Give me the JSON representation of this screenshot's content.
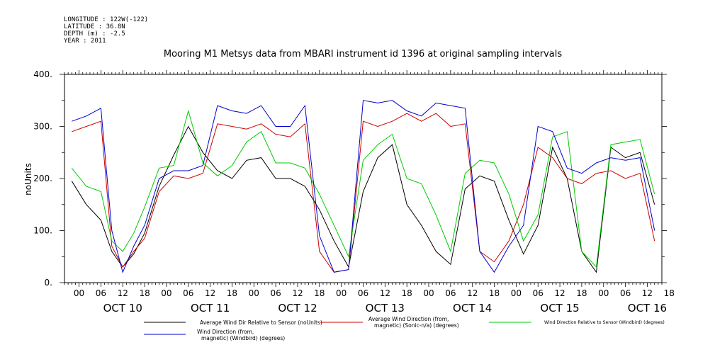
{
  "metadata": {
    "longitude": "LONGITUDE : 122W(-122)",
    "latitude": "LATITUDE : 36.8N",
    "depth": "DEPTH (m) : -2.5",
    "year": "YEAR : 2011"
  },
  "chart_data": {
    "type": "line",
    "title": "Mooring M1 Metsys data from MBARI instrument id 1396 at original sampling intervals",
    "ylabel": "noUnits",
    "xlabel": "",
    "ylim": [
      0,
      400
    ],
    "y_ticks": [
      0,
      100,
      200,
      300,
      400
    ],
    "x_hours_range": [
      -4,
      160
    ],
    "x_tick_labels": [
      "00",
      "06",
      "12",
      "18",
      "00",
      "06",
      "12",
      "18",
      "00",
      "06",
      "12",
      "18",
      "00",
      "06",
      "12",
      "18",
      "00",
      "06",
      "12",
      "18",
      "00",
      "06",
      "12",
      "18",
      "00",
      "06",
      "12",
      "18"
    ],
    "day_labels": [
      "OCT 10",
      "OCT 11",
      "OCT 12",
      "OCT 13",
      "OCT 14",
      "OCT 15",
      "OCT 16"
    ],
    "x_unit_note": "hours from 2011-10-10 00:00",
    "grid": false,
    "legend_position": "bottom",
    "series": [
      {
        "name": "Average Wind Dir Relative to Sensor (noUnits)",
        "color": "#000000",
        "x": [
          -2,
          2,
          6,
          9,
          12,
          15,
          18,
          22,
          26,
          30,
          34,
          38,
          42,
          46,
          50,
          54,
          58,
          62,
          66,
          70,
          74,
          78,
          82,
          86,
          90,
          94,
          98,
          102,
          106,
          110,
          114,
          118,
          122,
          126,
          130,
          134,
          138,
          142,
          146,
          150,
          154,
          158
        ],
        "y": [
          195,
          150,
          120,
          60,
          30,
          55,
          95,
          185,
          245,
          300,
          250,
          215,
          200,
          235,
          240,
          200,
          200,
          185,
          140,
          80,
          30,
          175,
          240,
          265,
          150,
          110,
          60,
          35,
          180,
          205,
          195,
          120,
          55,
          110,
          260,
          200,
          60,
          20,
          260,
          240,
          250,
          150
        ]
      },
      {
        "name": "Average Wind Direction (from, magnetic) (Sonic-n/a) (degrees)",
        "color": "#cc0000",
        "x": [
          -2,
          2,
          6,
          9,
          12,
          15,
          18,
          22,
          26,
          30,
          34,
          38,
          42,
          46,
          50,
          54,
          58,
          62,
          66,
          70,
          74,
          78,
          82,
          86,
          90,
          94,
          98,
          102,
          106,
          110,
          114,
          118,
          122,
          126,
          130,
          134,
          138,
          142,
          146,
          150,
          154,
          158
        ],
        "y": [
          290,
          300,
          310,
          70,
          30,
          60,
          85,
          175,
          205,
          200,
          210,
          305,
          300,
          295,
          305,
          285,
          280,
          305,
          60,
          20,
          25,
          310,
          300,
          310,
          325,
          310,
          325,
          300,
          305,
          60,
          40,
          80,
          150,
          260,
          240,
          200,
          190,
          210,
          215,
          200,
          210,
          80
        ]
      },
      {
        "name": "Wind Direction Relative to Sensor (Windbird) (degrees)",
        "color": "#00cc00",
        "x": [
          -2,
          2,
          6,
          9,
          12,
          15,
          18,
          22,
          26,
          30,
          34,
          38,
          42,
          46,
          50,
          54,
          58,
          62,
          66,
          70,
          74,
          78,
          82,
          86,
          90,
          94,
          98,
          102,
          106,
          110,
          114,
          118,
          122,
          126,
          130,
          134,
          138,
          142,
          146,
          150,
          154,
          158
        ],
        "y": [
          220,
          185,
          175,
          80,
          60,
          95,
          145,
          220,
          225,
          330,
          230,
          205,
          225,
          270,
          290,
          230,
          230,
          220,
          170,
          110,
          50,
          235,
          265,
          285,
          200,
          190,
          130,
          60,
          210,
          235,
          230,
          170,
          80,
          130,
          280,
          290,
          60,
          30,
          265,
          270,
          275,
          170
        ]
      },
      {
        "name": "Wind Direction (from, magnetic) (Windbird) (degrees)",
        "color": "#0000cc",
        "x": [
          -2,
          2,
          6,
          9,
          12,
          15,
          18,
          22,
          26,
          30,
          34,
          38,
          42,
          46,
          50,
          54,
          58,
          62,
          66,
          70,
          74,
          78,
          82,
          86,
          90,
          94,
          98,
          102,
          106,
          110,
          114,
          118,
          122,
          126,
          130,
          134,
          138,
          142,
          146,
          150,
          154,
          158
        ],
        "y": [
          310,
          320,
          335,
          100,
          20,
          70,
          110,
          200,
          215,
          215,
          225,
          340,
          330,
          325,
          340,
          300,
          300,
          340,
          90,
          20,
          25,
          350,
          345,
          350,
          330,
          320,
          345,
          340,
          335,
          60,
          20,
          70,
          110,
          300,
          290,
          220,
          210,
          230,
          240,
          235,
          240,
          100
        ]
      }
    ]
  }
}
